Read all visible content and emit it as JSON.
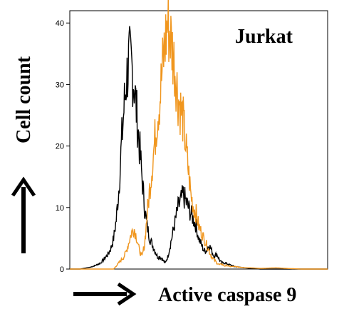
{
  "chart_data": {
    "type": "line",
    "title": "Jurkat",
    "xlabel": "Active caspase 9",
    "ylabel": "Cell count",
    "ylim": [
      0,
      42
    ],
    "yticks": [
      0,
      10,
      20,
      30,
      40
    ],
    "xlim": [
      0,
      100
    ],
    "grid": false,
    "legend": "none",
    "series": [
      {
        "color": "#000000",
        "x": [
          0,
          4,
          8,
          10,
          12,
          14,
          15,
          16,
          17,
          18,
          19,
          20,
          21,
          22,
          23,
          24,
          25,
          26,
          27,
          28,
          29,
          30,
          31,
          32,
          33,
          34,
          35,
          36,
          37,
          38,
          39,
          40,
          41,
          42,
          43,
          44,
          45,
          46,
          47,
          48,
          49,
          50,
          51,
          52,
          53,
          54,
          55,
          56,
          57,
          58,
          59,
          60,
          62,
          64,
          66,
          68,
          70,
          74,
          80,
          90,
          100
        ],
        "values": [
          0,
          0,
          0.3,
          0.6,
          1.0,
          2.0,
          2.5,
          3.5,
          5,
          8,
          13,
          20,
          26,
          31,
          34,
          33,
          30,
          25,
          20,
          15,
          10,
          7,
          5,
          4,
          3,
          2,
          2,
          1.5,
          1,
          2,
          4,
          6,
          8,
          10,
          11,
          12,
          11,
          10,
          9,
          8,
          7,
          5,
          4,
          3,
          3,
          4,
          3,
          2,
          2.5,
          1.5,
          1,
          1,
          0.7,
          0.4,
          0.3,
          0.2,
          0.1,
          0,
          0,
          0,
          0
        ]
      },
      {
        "color": "#F0961E",
        "x": [
          0,
          10,
          17,
          18,
          19,
          20,
          21,
          22,
          23,
          24,
          25,
          26,
          27,
          28,
          29,
          30,
          31,
          32,
          33,
          34,
          35,
          36,
          37,
          38,
          39,
          40,
          41,
          42,
          43,
          44,
          45,
          46,
          47,
          48,
          49,
          50,
          51,
          52,
          53,
          54,
          55,
          56,
          57,
          58,
          59,
          60,
          61,
          62,
          64,
          66,
          68,
          70,
          74,
          80,
          84,
          90,
          100
        ],
        "values": [
          0,
          0,
          0,
          0.5,
          1,
          1.5,
          2,
          3,
          4.5,
          6,
          6.5,
          5,
          3,
          2,
          4,
          9,
          13,
          17,
          21,
          25,
          28,
          33,
          37,
          40,
          38,
          35,
          32,
          28,
          26,
          24,
          20,
          16,
          12,
          10,
          9,
          7,
          6,
          5,
          4,
          3,
          2,
          1.5,
          1,
          0.7,
          0.8,
          0.5,
          0.6,
          0.4,
          0.4,
          0.3,
          0.2,
          0.2,
          0.1,
          0.2,
          0.1,
          0,
          0
        ]
      }
    ]
  }
}
